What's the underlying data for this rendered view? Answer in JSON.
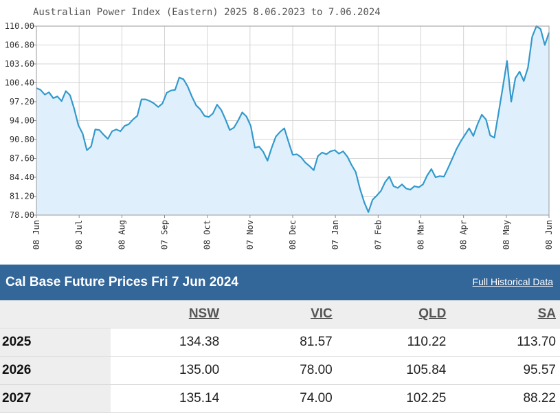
{
  "chart_data": {
    "type": "area",
    "title": "Australian Power Index (Eastern) 2025 8.06.2023 to 7.06.2024",
    "y_ticks": [
      "110.00",
      "106.80",
      "103.60",
      "100.40",
      "97.20",
      "94.00",
      "90.80",
      "87.60",
      "84.40",
      "81.20",
      "78.00"
    ],
    "ylim": [
      78.0,
      110.0
    ],
    "x_ticks": [
      "08 Jun",
      "08 Jul",
      "08 Aug",
      "07 Sep",
      "08 Oct",
      "07 Nov",
      "08 Dec",
      "07 Jan",
      "07 Feb",
      "08 Mar",
      "08 Apr",
      "08 May",
      "08 Jun"
    ],
    "grid": true,
    "line_color": "#3399cc",
    "fill_color": "#dff0fc",
    "series": [
      {
        "values": [
          99.5,
          99.2,
          98.4,
          98.8,
          97.8,
          98.1,
          97.3,
          99.0,
          98.3,
          96.0,
          93.2,
          91.8,
          89.0,
          89.6,
          92.5,
          92.4,
          91.6,
          90.9,
          92.2,
          92.5,
          92.2,
          93.1,
          93.4,
          94.2,
          94.8,
          97.6,
          97.6,
          97.3,
          96.9,
          96.3,
          96.9,
          98.7,
          99.1,
          99.2,
          101.3,
          101.0,
          99.8,
          98.1,
          96.6,
          95.9,
          94.8,
          94.6,
          95.2,
          96.7,
          95.8,
          94.2,
          92.4,
          92.8,
          94.0,
          95.4,
          94.7,
          93.1,
          89.4,
          89.6,
          88.7,
          87.2,
          89.4,
          91.3,
          92.1,
          92.7,
          90.4,
          88.2,
          88.3,
          87.8,
          86.9,
          86.3,
          85.6,
          88.0,
          88.6,
          88.3,
          88.8,
          89.0,
          88.4,
          88.8,
          87.9,
          86.5,
          85.3,
          82.5,
          80.2,
          78.5,
          80.6,
          81.3,
          82.1,
          83.6,
          84.5,
          82.9,
          82.6,
          83.2,
          82.5,
          82.3,
          82.9,
          82.7,
          83.2,
          84.7,
          85.8,
          84.4,
          84.6,
          84.5,
          86.0,
          87.6,
          89.2,
          90.5,
          91.6,
          92.7,
          91.4,
          93.4,
          95.0,
          94.2,
          91.5,
          91.1,
          95.3,
          99.6,
          104.1,
          97.2,
          101.2,
          102.3,
          100.7,
          103.0,
          108.2,
          110.0,
          109.5,
          106.8,
          108.9
        ]
      }
    ]
  },
  "table": {
    "title": "Cal Base Future Prices Fri 7 Jun 2024",
    "link": "Full Historical Data",
    "columns": [
      "NSW",
      "VIC",
      "QLD",
      "SA"
    ],
    "rows": [
      {
        "year": "2025",
        "values": [
          "134.38",
          "81.57",
          "110.22",
          "113.70"
        ]
      },
      {
        "year": "2026",
        "values": [
          "135.00",
          "78.00",
          "105.84",
          "95.57"
        ]
      },
      {
        "year": "2027",
        "values": [
          "135.14",
          "74.00",
          "102.25",
          "88.22"
        ]
      }
    ]
  }
}
